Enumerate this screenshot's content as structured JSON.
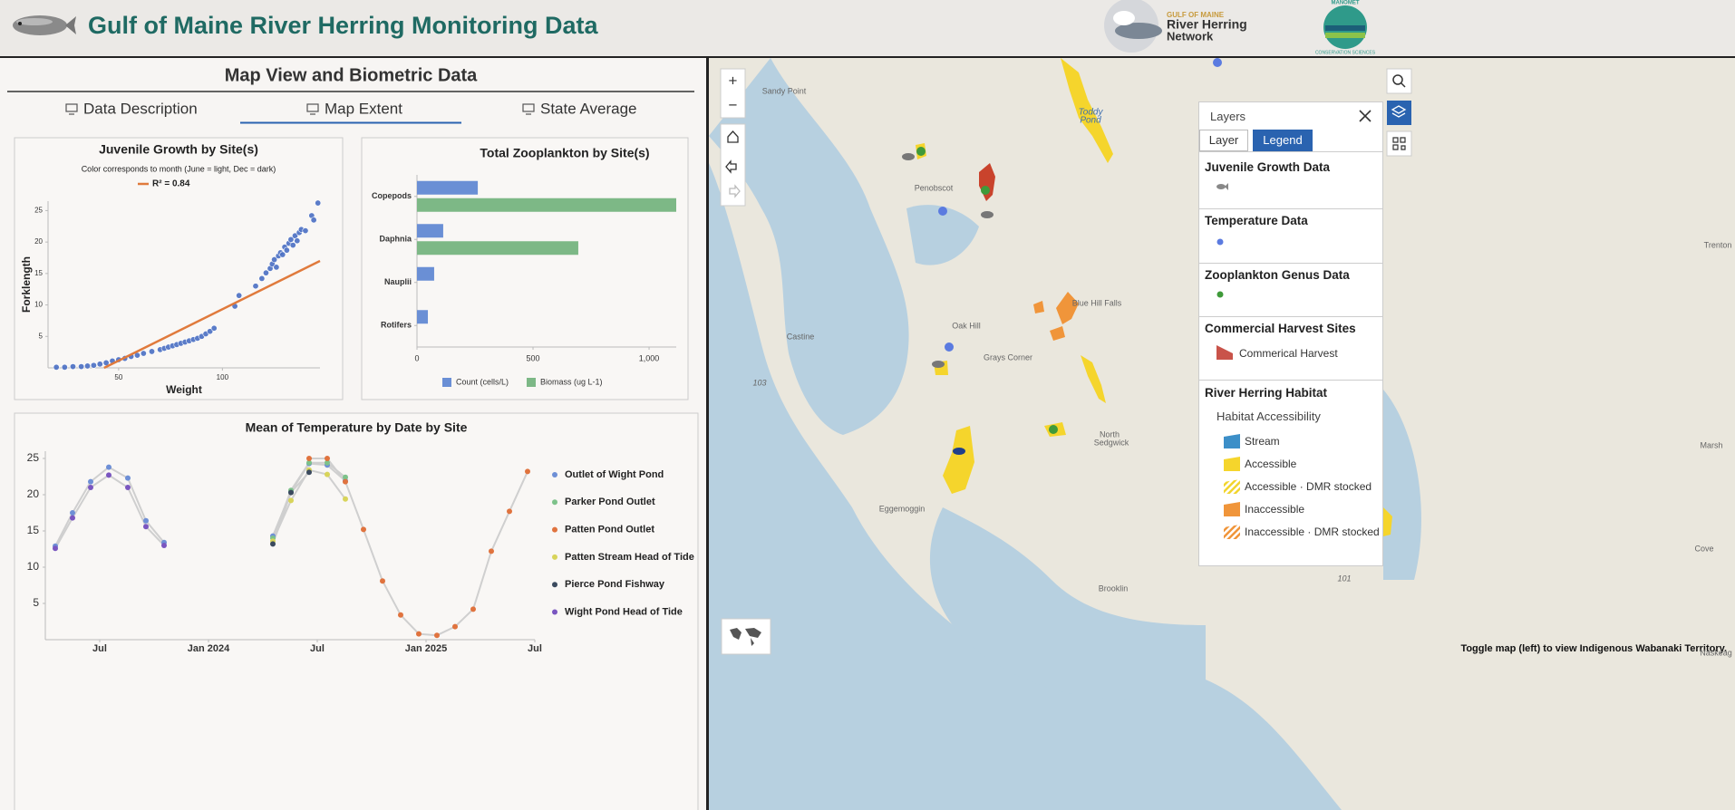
{
  "header": {
    "title": "Gulf of Maine River Herring Monitoring Data",
    "logo_network": [
      "GULF OF MAINE",
      "River Herring",
      "Network"
    ],
    "logo_manomet": [
      "MANOMET",
      "CONSERVATION SCIENCES"
    ]
  },
  "panel": {
    "title": "Map View and Biometric Data",
    "tabs": [
      "Data Description",
      "Map Extent",
      "State Average"
    ]
  },
  "chart_data": [
    {
      "type": "scatter",
      "title": "Juvenile Growth by Site(s)",
      "subtitle": "Color corresponds to month (June = light, Dec = dark)",
      "legend": "R² = 0.84",
      "x_label": "Weight",
      "y_label": "Forklength",
      "color": "#4a6fc4",
      "x": [
        20,
        24,
        28,
        32,
        35,
        38,
        41,
        44,
        47,
        50,
        53,
        56,
        59,
        62,
        66,
        70,
        72,
        74,
        76,
        78,
        80,
        82,
        84,
        86,
        88,
        90,
        92,
        94,
        96,
        106,
        108,
        116,
        119,
        121,
        123,
        124,
        125,
        126,
        127,
        128,
        129,
        130,
        131,
        132,
        133,
        134,
        135,
        136,
        137,
        138,
        140,
        143,
        144,
        146
      ],
      "values": [
        0.1,
        0.1,
        0.2,
        0.2,
        0.3,
        0.4,
        0.6,
        0.8,
        1.1,
        1.3,
        1.5,
        1.8,
        2.0,
        2.3,
        2.6,
        2.9,
        3.1,
        3.3,
        3.5,
        3.7,
        3.9,
        4.1,
        4.3,
        4.5,
        4.7,
        5.0,
        5.4,
        5.8,
        6.3,
        9.8,
        11.5,
        13.0,
        14.2,
        15.1,
        15.8,
        16.5,
        17.2,
        16.0,
        17.8,
        18.3,
        18.0,
        19.2,
        18.7,
        19.8,
        20.4,
        19.5,
        21.0,
        20.2,
        21.5,
        22.0,
        21.8,
        24.2,
        23.5,
        26.2
      ],
      "trendline": {
        "color": "#e07a3c",
        "x": [
          43,
          147
        ],
        "values": [
          0,
          17
        ]
      },
      "xlim": [
        16,
        147
      ],
      "ylim": [
        0,
        26.5
      ],
      "xticks": [
        50,
        100
      ],
      "yticks": [
        5,
        10,
        15,
        20,
        25
      ]
    },
    {
      "type": "bar",
      "orientation": "horizontal",
      "title": "Total Zooplankton by Site(s)",
      "categories": [
        "Copepods",
        "Daphnia",
        "Nauplii",
        "Rotifers"
      ],
      "series": [
        {
          "name": "Count (cells/L)",
          "color": "#6a8fd5",
          "values": [
            262,
            113,
            74,
            47
          ]
        },
        {
          "name": "Biomass (ug L-1)",
          "color": "#7db886",
          "values": [
            1117,
            695,
            null,
            null
          ]
        }
      ],
      "xlim": [
        0,
        1117
      ],
      "xticks": [
        0,
        500,
        {
          "value": 1000,
          "label": "1,000"
        }
      ],
      "legend": "bottom"
    },
    {
      "type": "line",
      "title": "Mean of Temperature by Date by Site",
      "line_color": "#cfcfcf",
      "xlim": [
        3,
        30
      ],
      "ylim": [
        0,
        26
      ],
      "xticks": [
        {
          "value": 6,
          "label": "Jul"
        },
        {
          "value": 12,
          "label": "Jan 2024"
        },
        {
          "value": 18,
          "label": "Jul"
        },
        {
          "value": 24,
          "label": "Jan 2025"
        },
        {
          "value": 30,
          "label": "Jul"
        }
      ],
      "yticks": [
        5,
        10,
        15,
        20,
        25
      ],
      "legend": "right",
      "series": [
        {
          "name": "Outlet of Wight Pond",
          "color": "#6e8fd6",
          "x": [
            3.55,
            4.5,
            5.5,
            6.5,
            7.55,
            8.55,
            9.55,
            null,
            15.55,
            16.55,
            17.55,
            18.55,
            19.55
          ],
          "values": [
            12.9,
            17.5,
            21.8,
            23.8,
            22.3,
            16.4,
            13.4,
            null,
            14.3,
            20.4,
            24.3,
            24.1,
            21.9
          ]
        },
        {
          "name": "Parker Pond Outlet",
          "color": "#7dc28a",
          "x": [
            15.55,
            16.55,
            17.55,
            18.55,
            19.55
          ],
          "values": [
            14.0,
            20.6,
            24.4,
            24.4,
            22.4
          ]
        },
        {
          "name": "Patten Pond Outlet",
          "color": "#e0733e",
          "x": [
            17.55,
            18.55,
            19.55,
            20.55,
            21.6,
            22.6,
            23.6,
            24.6,
            25.6,
            26.6,
            27.6,
            28.6,
            29.6
          ],
          "values": [
            25.0,
            25.0,
            21.8,
            15.2,
            8.1,
            3.4,
            0.8,
            0.6,
            1.8,
            4.2,
            12.2,
            17.7,
            23.2
          ]
        },
        {
          "name": "Patten Stream Head of Tide",
          "color": "#d8d45a",
          "x": [
            15.55,
            16.55,
            17.55,
            18.55,
            19.55
          ],
          "values": [
            13.6,
            19.2,
            23.4,
            22.8,
            19.4
          ]
        },
        {
          "name": "Pierce Pond Fishway",
          "color": "#3b4a5e",
          "x": [
            15.55,
            16.55,
            17.55
          ],
          "values": [
            13.2,
            20.3,
            23.1
          ]
        },
        {
          "name": "Wight Pond Head of Tide",
          "color": "#7a56c0",
          "x": [
            3.55,
            4.5,
            5.5,
            6.5,
            7.55,
            8.55,
            9.55
          ],
          "values": [
            12.6,
            16.8,
            21.0,
            22.7,
            21.0,
            15.6,
            13.0
          ]
        }
      ]
    }
  ],
  "map": {
    "controls": [
      "+",
      "−"
    ],
    "labels": [
      "Sandy Point",
      "Penobscot",
      "Toddy",
      "Pond",
      "Oak Hill",
      "Castine",
      "Grays Corner",
      "Blue Hill Falls",
      "North",
      "Sedgwick",
      "Eggemoggin",
      "Brooklin",
      "Trenton",
      "Marsh",
      "Cove",
      "Naskeag",
      "103",
      "101"
    ],
    "footer": "Toggle map (left) to view Indigenous Wabanaki Territory."
  },
  "layers_panel": {
    "title": "Layers",
    "tabs": [
      "Layer",
      "Legend"
    ],
    "sections": [
      {
        "title": "Juvenile Growth Data"
      },
      {
        "title": "Temperature Data"
      },
      {
        "title": "Zooplankton Genus Data"
      },
      {
        "title": "Commercial Harvest Sites",
        "items": [
          "Commerical Harvest"
        ]
      },
      {
        "title": "River Herring Habitat",
        "subtitle": "Habitat Accessibility",
        "items": [
          "Stream",
          "Accessible",
          "Accessible · DMR stocked",
          "Inaccessible",
          "Inaccessible · DMR stocked"
        ]
      }
    ]
  }
}
